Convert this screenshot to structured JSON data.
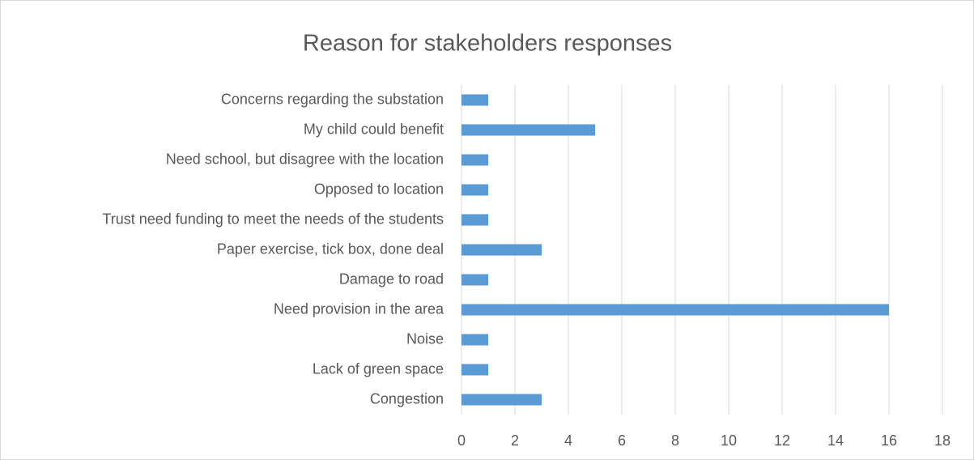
{
  "chart_data": {
    "type": "bar",
    "orientation": "horizontal",
    "title": "Reason for stakeholders responses",
    "categories": [
      "Concerns regarding the substation",
      "My child could benefit",
      "Need school, but disagree with the location",
      "Opposed to location",
      "Trust need funding to meet the needs of the students",
      "Paper exercise, tick box, done deal",
      "Damage to road",
      "Need provision in the area",
      "Noise",
      "Lack of green space",
      "Congestion"
    ],
    "values": [
      1,
      5,
      1,
      1,
      1,
      3,
      1,
      16,
      1,
      1,
      3
    ],
    "color": "#5b9bd5",
    "xlim": [
      0,
      18
    ],
    "xticks": [
      0,
      2,
      4,
      6,
      8,
      10,
      12,
      14,
      16,
      18
    ],
    "grid": true
  }
}
